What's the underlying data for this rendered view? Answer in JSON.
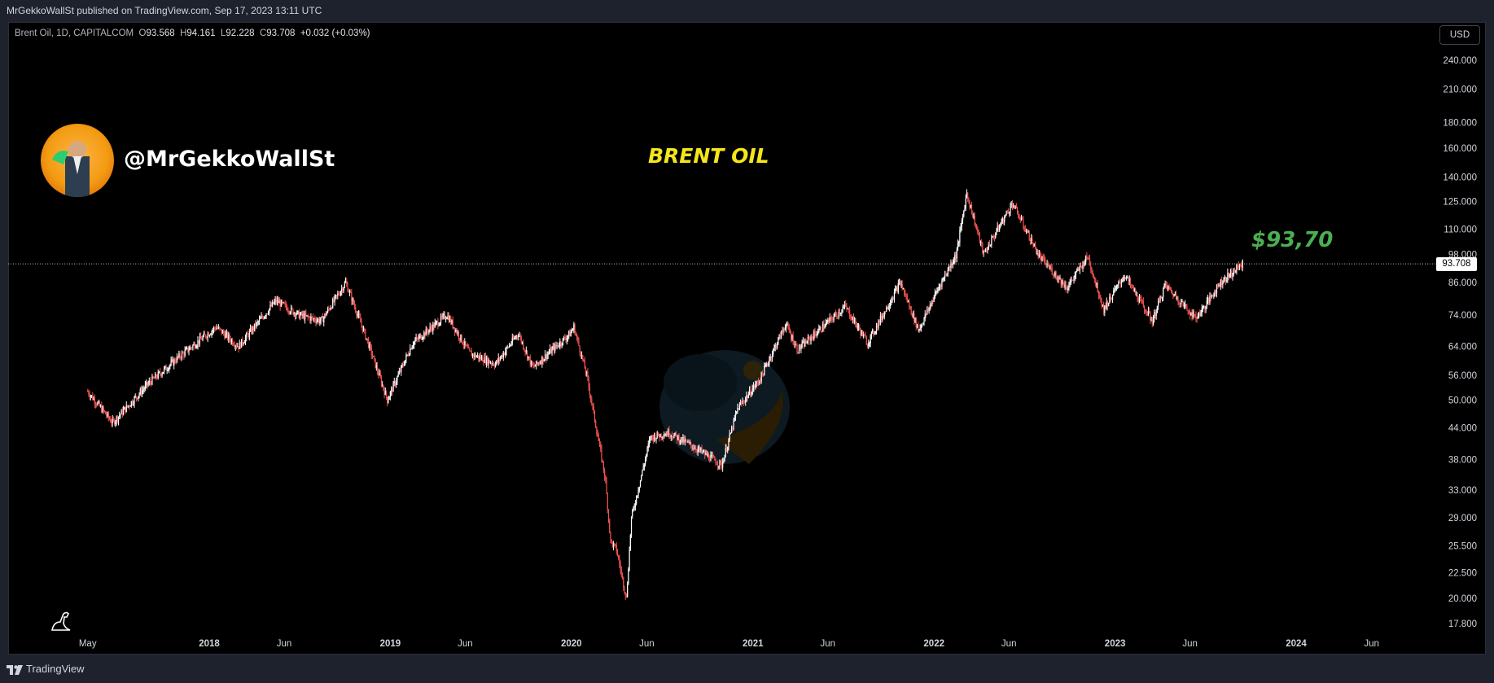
{
  "header": {
    "published_line": "MrGekkoWallSt published on TradingView.com, Sep 17, 2023 13:11 UTC"
  },
  "legend": {
    "symbol": "Brent Oil, 1D, CAPITALCOM",
    "open_label": "O",
    "open": "93.568",
    "high_label": "H",
    "high": "94.161",
    "low_label": "L",
    "low": "92.228",
    "close_label": "C",
    "close": "93.708",
    "change": "+0.032 (+0.03%)"
  },
  "currency_button": "USD",
  "overlay": {
    "handle": "@MrGekkoWallSt",
    "headline": "BRENT OIL",
    "price_annotation": "$93,70"
  },
  "last_price_label": "93.708",
  "footer": {
    "brand": "TradingView"
  },
  "colors": {
    "background": "#000000",
    "up_candle": "#ffffff",
    "down_candle": "#ef5350",
    "headline": "#f5e61a",
    "annotation": "#4caf50",
    "axis_text": "#d1d4dc"
  },
  "chart_data": {
    "type": "line",
    "title": "BRENT OIL",
    "series": [
      {
        "name": "Brent Oil",
        "x": [
          "2017-05-01",
          "2017-06-20",
          "2017-09-01",
          "2017-11-01",
          "2018-01-15",
          "2018-03-01",
          "2018-05-15",
          "2018-07-01",
          "2018-08-15",
          "2018-10-03",
          "2018-11-15",
          "2018-12-26",
          "2019-02-15",
          "2019-04-25",
          "2019-06-10",
          "2019-08-01",
          "2019-09-16",
          "2019-10-15",
          "2019-12-30",
          "2020-01-06",
          "2020-02-01",
          "2020-03-09",
          "2020-03-20",
          "2020-04-01",
          "2020-04-21",
          "2020-05-01",
          "2020-06-08",
          "2020-07-15",
          "2020-09-08",
          "2020-10-30",
          "2020-12-01",
          "2021-01-15",
          "2021-03-08",
          "2021-04-01",
          "2021-07-06",
          "2021-08-20",
          "2021-10-25",
          "2021-12-01",
          "2022-01-10",
          "2022-02-15",
          "2022-03-08",
          "2022-04-11",
          "2022-06-08",
          "2022-08-01",
          "2022-09-26",
          "2022-11-07",
          "2022-12-09",
          "2023-01-20",
          "2023-03-17",
          "2023-04-12",
          "2023-06-12",
          "2023-07-01",
          "2023-08-01",
          "2023-09-15"
        ],
        "y": [
          52,
          45,
          54,
          61,
          70,
          64,
          79,
          74,
          72,
          86,
          66,
          50,
          65,
          74,
          62,
          59,
          68,
          58,
          68,
          70,
          56,
          35,
          26,
          25,
          20,
          29,
          42,
          43,
          40,
          37,
          48,
          55,
          71,
          63,
          77,
          65,
          86,
          69,
          84,
          98,
          130,
          98,
          124,
          97,
          84,
          97,
          76,
          89,
          72,
          85,
          73,
          77,
          86,
          93.7
        ]
      }
    ],
    "x_tick_labels": [
      "May",
      "2018",
      "Jun",
      "2019",
      "Jun",
      "2020",
      "Jun",
      "2021",
      "Jun",
      "2022",
      "Jun",
      "2023",
      "Jun",
      "2024",
      "Jun"
    ],
    "y_tick_labels": [
      "240.000",
      "210.000",
      "180.000",
      "160.000",
      "140.000",
      "125.000",
      "110.000",
      "98.000",
      "86.000",
      "74.000",
      "64.000",
      "56.000",
      "50.000",
      "44.000",
      "38.000",
      "33.000",
      "29.000",
      "25.500",
      "22.500",
      "20.000",
      "17.800"
    ],
    "ylim": [
      17.8,
      240
    ],
    "y_scale": "log",
    "last_value": 93.708,
    "grid": false,
    "legend_position": "top-left"
  }
}
